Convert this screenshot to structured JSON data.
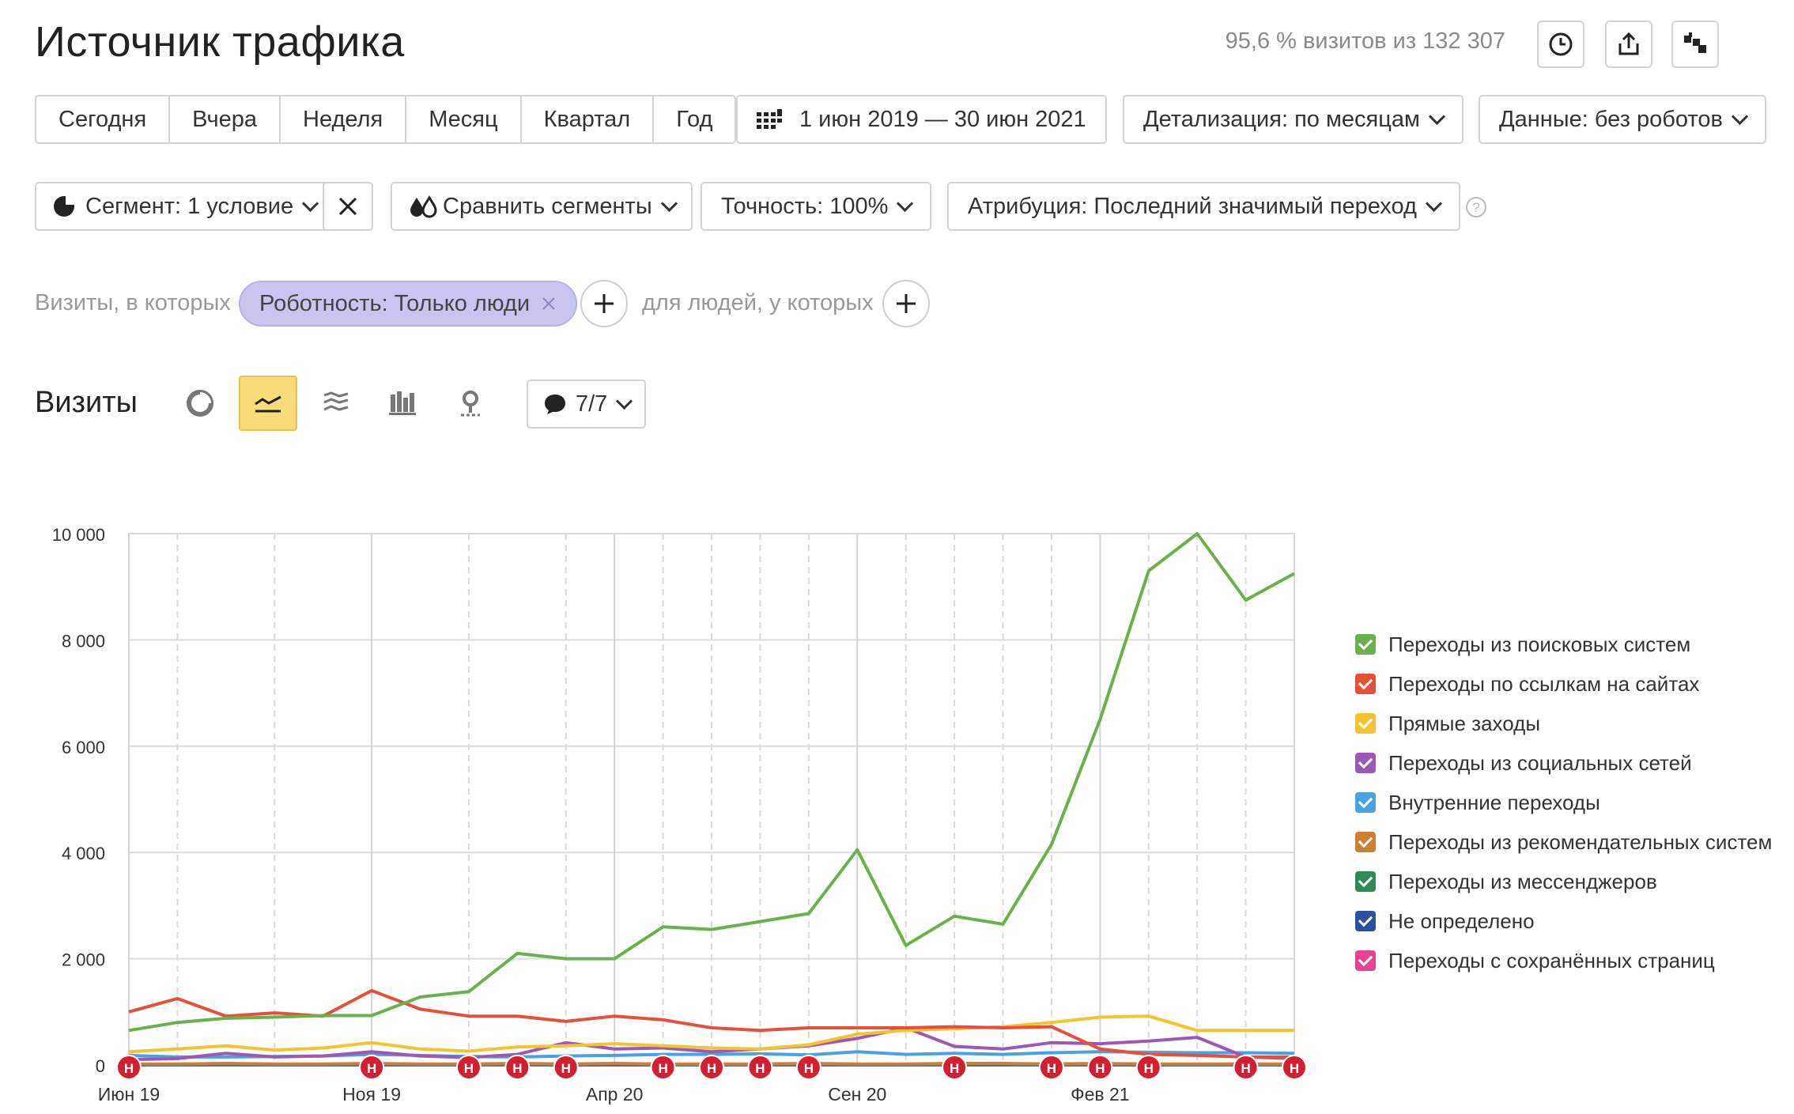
{
  "header": {
    "title": "Источник трафика",
    "visits_info": "95,6 % визитов из 132 307"
  },
  "toolbar": {
    "periods": [
      "Сегодня",
      "Вчера",
      "Неделя",
      "Месяц",
      "Квартал",
      "Год"
    ],
    "date_range": "1 июн 2019 — 30 июн 2021",
    "detail": "Детализация: по месяцам",
    "data_filter": "Данные: без роботов",
    "segment": "Сегмент: 1 условие",
    "compare": "Сравнить сегменты",
    "accuracy": "Точность: 100%",
    "attribution": "Атрибуция: Последний значимый переход"
  },
  "filters": {
    "visits_label": "Визиты, в которых",
    "chip": "Роботность: Только люди",
    "people_label": "для людей, у которых"
  },
  "view": {
    "title": "Визиты",
    "notes_count": "7/7"
  },
  "chart_data": {
    "type": "line",
    "ylim": [
      0,
      10000
    ],
    "yticks": [
      "10 000",
      "8 000",
      "6 000",
      "4 000",
      "2 000",
      "0"
    ],
    "x_tick_labels": [
      {
        "index": 0,
        "label": "Июн 19"
      },
      {
        "index": 5,
        "label": "Ноя 19"
      },
      {
        "index": 10,
        "label": "Апр 20"
      },
      {
        "index": 15,
        "label": "Сен 20"
      },
      {
        "index": 20,
        "label": "Фев 21"
      }
    ],
    "categories": [
      "2019-06",
      "2019-07",
      "2019-08",
      "2019-09",
      "2019-10",
      "2019-11",
      "2019-12",
      "2020-01",
      "2020-02",
      "2020-03",
      "2020-04",
      "2020-05",
      "2020-06",
      "2020-07",
      "2020-08",
      "2020-09",
      "2020-10",
      "2020-11",
      "2020-12",
      "2021-01",
      "2021-02",
      "2021-03",
      "2021-04",
      "2021-05",
      "2021-06"
    ],
    "series": [
      {
        "name": "Переходы из поисковых систем",
        "color": "#6ab04c",
        "values": [
          650,
          800,
          880,
          900,
          930,
          930,
          1280,
          1380,
          2100,
          2000,
          2000,
          2600,
          2550,
          2700,
          2850,
          4050,
          2250,
          2800,
          2650,
          4150,
          6500,
          9300,
          10000,
          8750,
          9250
        ]
      },
      {
        "name": "Переходы по ссылкам на сайтах",
        "color": "#e55039",
        "values": [
          1000,
          1250,
          920,
          980,
          920,
          1400,
          1050,
          920,
          920,
          820,
          920,
          850,
          700,
          650,
          700,
          700,
          700,
          720,
          700,
          720,
          300,
          200,
          180,
          150,
          150
        ]
      },
      {
        "name": "Прямые заходы",
        "color": "#f4c430",
        "values": [
          250,
          300,
          360,
          280,
          320,
          420,
          300,
          260,
          340,
          360,
          400,
          360,
          320,
          300,
          380,
          580,
          650,
          680,
          720,
          800,
          900,
          920,
          650,
          650,
          650
        ]
      },
      {
        "name": "Переходы из социальных сетей",
        "color": "#9b59b6",
        "values": [
          100,
          120,
          220,
          150,
          170,
          250,
          170,
          140,
          200,
          420,
          300,
          320,
          250,
          300,
          360,
          500,
          700,
          350,
          300,
          420,
          400,
          450,
          520,
          150,
          120
        ]
      },
      {
        "name": "Внутренние переходы",
        "color": "#4aa3df",
        "values": [
          180,
          150,
          150,
          160,
          170,
          200,
          180,
          160,
          150,
          170,
          180,
          200,
          200,
          210,
          190,
          250,
          200,
          220,
          200,
          230,
          250,
          240,
          230,
          230,
          220
        ]
      },
      {
        "name": "Переходы из рекомендательных систем",
        "color": "#cd7f32",
        "values": [
          20,
          20,
          30,
          20,
          20,
          30,
          20,
          20,
          30,
          20,
          30,
          20,
          20,
          20,
          30,
          20,
          20,
          30,
          30,
          20,
          30,
          20,
          20,
          20,
          20
        ]
      },
      {
        "name": "Переходы из мессенджеров",
        "color": "#2e8b57",
        "values": [
          10,
          10,
          10,
          10,
          10,
          10,
          10,
          10,
          10,
          10,
          20,
          10,
          10,
          10,
          10,
          10,
          10,
          10,
          10,
          10,
          10,
          10,
          10,
          10,
          10
        ]
      },
      {
        "name": "Не определено",
        "color": "#2c4f9e",
        "values": [
          5,
          5,
          5,
          5,
          5,
          5,
          5,
          5,
          5,
          5,
          5,
          5,
          5,
          5,
          5,
          5,
          5,
          5,
          5,
          5,
          5,
          5,
          5,
          5,
          5
        ]
      },
      {
        "name": "Переходы с сохранённых страниц",
        "color": "#e84393",
        "values": [
          5,
          5,
          5,
          5,
          5,
          5,
          5,
          5,
          5,
          5,
          5,
          5,
          5,
          5,
          5,
          5,
          5,
          5,
          5,
          5,
          5,
          5,
          5,
          5,
          5
        ]
      }
    ],
    "note_marker": "Н",
    "note_markers_at": [
      0,
      5,
      7,
      8,
      9,
      11,
      12,
      13,
      14,
      17,
      19,
      20,
      21,
      23,
      24
    ]
  }
}
